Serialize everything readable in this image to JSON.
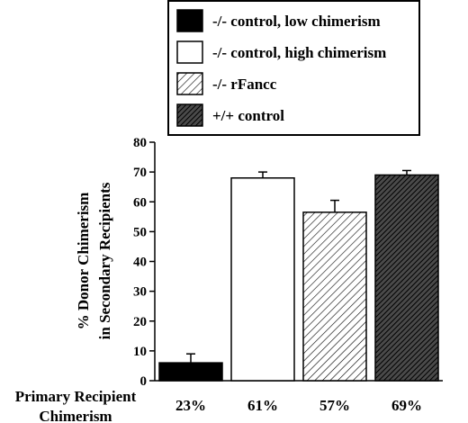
{
  "chart_data": {
    "type": "bar",
    "categories": [
      "-/- control, low chimerism",
      "-/- control, high chimerism",
      "-/- rFancc",
      "+/+ control"
    ],
    "values": [
      6,
      68,
      56.5,
      69
    ],
    "errors": [
      3,
      2,
      4,
      1.5
    ],
    "ylabel": [
      "% Donor  Chimerism",
      "in Secondary Recipients"
    ],
    "ylim": [
      0,
      80
    ],
    "yticks": [
      0,
      10,
      20,
      30,
      40,
      50,
      60,
      70,
      80
    ],
    "grid": false,
    "legend_position": "top-center",
    "legend": [
      {
        "label": "-/- control, low chimerism",
        "fill": "solid",
        "color": "#000000"
      },
      {
        "label": "-/- control, high chimerism",
        "fill": "none",
        "color": "#ffffff"
      },
      {
        "label": "-/- rFancc",
        "fill": "hatch-light",
        "color": "#000000"
      },
      {
        "label": "+/+ control",
        "fill": "hatch-dark",
        "color": "#000000"
      }
    ],
    "row_label": [
      "Primary Recipient",
      "Chimerism"
    ],
    "row_values": [
      "23%",
      "61%",
      "57%",
      "69%"
    ]
  }
}
